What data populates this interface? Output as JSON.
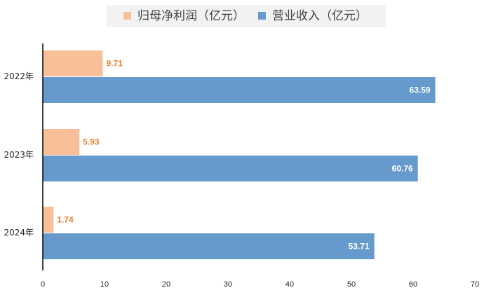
{
  "chart_data": {
    "type": "bar",
    "orientation": "horizontal",
    "categories": [
      "2022年",
      "2023年",
      "2024年"
    ],
    "series": [
      {
        "name": "归母净利润（亿元）",
        "color": "#f8bf98",
        "label_color": "#e6812e",
        "values": [
          9.71,
          5.93,
          1.74
        ],
        "value_labels": [
          "9.71",
          "5.93",
          "1.74"
        ]
      },
      {
        "name": "营业收入（亿元）",
        "color": "#6699cc",
        "label_color": "#ffffff",
        "values": [
          63.59,
          60.76,
          53.71
        ],
        "value_labels": [
          "63.59",
          "60.76",
          "53.71"
        ]
      }
    ],
    "xlim": [
      0,
      70
    ],
    "x_ticks": [
      "0",
      "10",
      "20",
      "30",
      "40",
      "50",
      "60",
      "70"
    ],
    "legend_position": "top-center",
    "grid": false
  }
}
